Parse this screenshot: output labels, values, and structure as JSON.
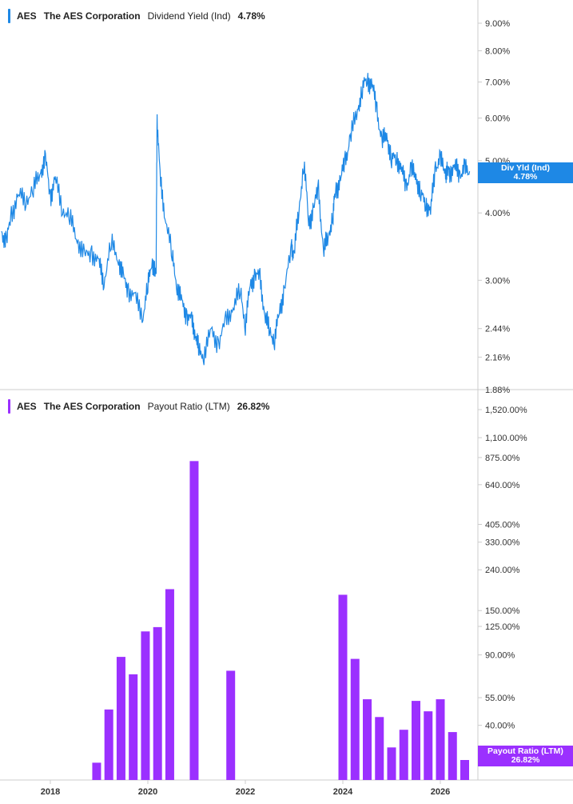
{
  "colors": {
    "yield": "#1e88e5",
    "payout": "#9b30ff",
    "axis": "#cccccc",
    "text": "#333333"
  },
  "top_legend": {
    "ticker": "AES",
    "name": "The AES Corporation",
    "metric": "Dividend Yield (Ind)",
    "value": "4.78%"
  },
  "bottom_legend": {
    "ticker": "AES",
    "name": "The AES Corporation",
    "metric": "Payout Ratio (LTM)",
    "value": "26.82%"
  },
  "top_tag": {
    "label": "Div Yld (Ind)",
    "value": "4.78%"
  },
  "bottom_tag": {
    "label": "Payout Ratio (LTM)",
    "value": "26.82%"
  },
  "chart_data": [
    {
      "type": "line",
      "title": "Dividend Yield (Ind)",
      "scale": "log",
      "y_ticks": [
        "9.00%",
        "8.00%",
        "7.00%",
        "6.00%",
        "5.00%",
        "4.00%",
        "3.00%",
        "2.44%",
        "2.16%",
        "1.88%"
      ],
      "ylim": [
        1.88,
        10.6
      ],
      "xlim": [
        2017.0,
        2027.0
      ],
      "series": [
        {
          "x": [
            2017.0,
            2017.1,
            2017.2,
            2017.35,
            2017.5,
            2017.65,
            2017.8,
            2017.9,
            2018.0,
            2018.1,
            2018.25,
            2018.4,
            2018.55,
            2018.7,
            2018.85,
            2019.0,
            2019.1,
            2019.25,
            2019.4,
            2019.5,
            2019.6,
            2019.75,
            2019.9,
            2020.0,
            2020.08,
            2020.17,
            2020.19,
            2020.25,
            2020.35,
            2020.5,
            2020.6,
            2020.7,
            2020.8,
            2020.9,
            2020.98,
            2021.05,
            2021.15,
            2021.3,
            2021.45,
            2021.6,
            2021.75,
            2021.9,
            2022.0,
            2022.1,
            2022.2,
            2022.3,
            2022.4,
            2022.5,
            2022.6,
            2022.7,
            2022.8,
            2022.95,
            2023.0,
            2023.1,
            2023.2,
            2023.3,
            2023.4,
            2023.5,
            2023.6,
            2023.7,
            2023.8,
            2023.85,
            2023.95,
            2024.05,
            2024.15,
            2024.3,
            2024.4,
            2024.5,
            2024.6,
            2024.7,
            2024.8,
            2024.9,
            2025.0,
            2025.1,
            2025.2,
            2025.3,
            2025.4,
            2025.5,
            2025.6,
            2025.7,
            2025.8,
            2025.9,
            2026.0,
            2026.1,
            2026.15,
            2026.2,
            2026.3,
            2026.4,
            2026.5,
            2026.6
          ],
          "y": [
            3.7,
            3.5,
            4.0,
            4.3,
            4.25,
            4.4,
            4.8,
            5.0,
            4.3,
            4.6,
            4.1,
            3.9,
            3.6,
            3.3,
            3.4,
            3.2,
            3.0,
            3.5,
            3.3,
            3.0,
            2.9,
            2.75,
            2.6,
            2.9,
            3.3,
            3.0,
            6.0,
            4.6,
            4.0,
            3.3,
            2.95,
            2.7,
            2.6,
            2.5,
            2.4,
            2.2,
            2.2,
            2.4,
            2.3,
            2.5,
            2.7,
            2.85,
            2.5,
            2.9,
            3.1,
            3.0,
            2.6,
            2.4,
            2.35,
            2.6,
            2.9,
            3.4,
            3.4,
            4.0,
            5.0,
            3.8,
            4.1,
            4.4,
            3.4,
            3.6,
            4.0,
            4.4,
            4.6,
            5.0,
            5.5,
            6.2,
            6.8,
            7.1,
            6.9,
            6.2,
            5.4,
            5.6,
            5.0,
            5.1,
            4.8,
            4.5,
            4.8,
            4.7,
            4.3,
            4.2,
            4.0,
            4.9,
            5.0,
            4.8,
            4.75,
            4.8,
            4.85,
            4.75,
            4.8,
            4.78
          ]
        }
      ]
    },
    {
      "type": "bar",
      "title": "Payout Ratio (LTM)",
      "scale": "log",
      "y_ticks": [
        "1,520.00%",
        "1,100.00%",
        "875.00%",
        "640.00%",
        "405.00%",
        "330.00%",
        "240.00%",
        "150.00%",
        "125.00%",
        "90.00%",
        "55.00%",
        "40.00%"
      ],
      "x_ticks": [
        "2018",
        "2020",
        "2022",
        "2024",
        "2026"
      ],
      "xlim": [
        2017.0,
        2027.0
      ],
      "x": [
        2018.95,
        2019.2,
        2019.45,
        2019.7,
        2019.95,
        2020.2,
        2020.45,
        2020.95,
        2021.7,
        2024.0,
        2024.25,
        2024.5,
        2024.75,
        2025.0,
        2025.25,
        2025.5,
        2025.75,
        2026.0,
        2026.25,
        2026.5
      ],
      "values": [
        26,
        48,
        88,
        72,
        118,
        124,
        192,
        840,
        75,
        180,
        86,
        54,
        44,
        31,
        38,
        53,
        47,
        54,
        37,
        26.82
      ]
    }
  ]
}
